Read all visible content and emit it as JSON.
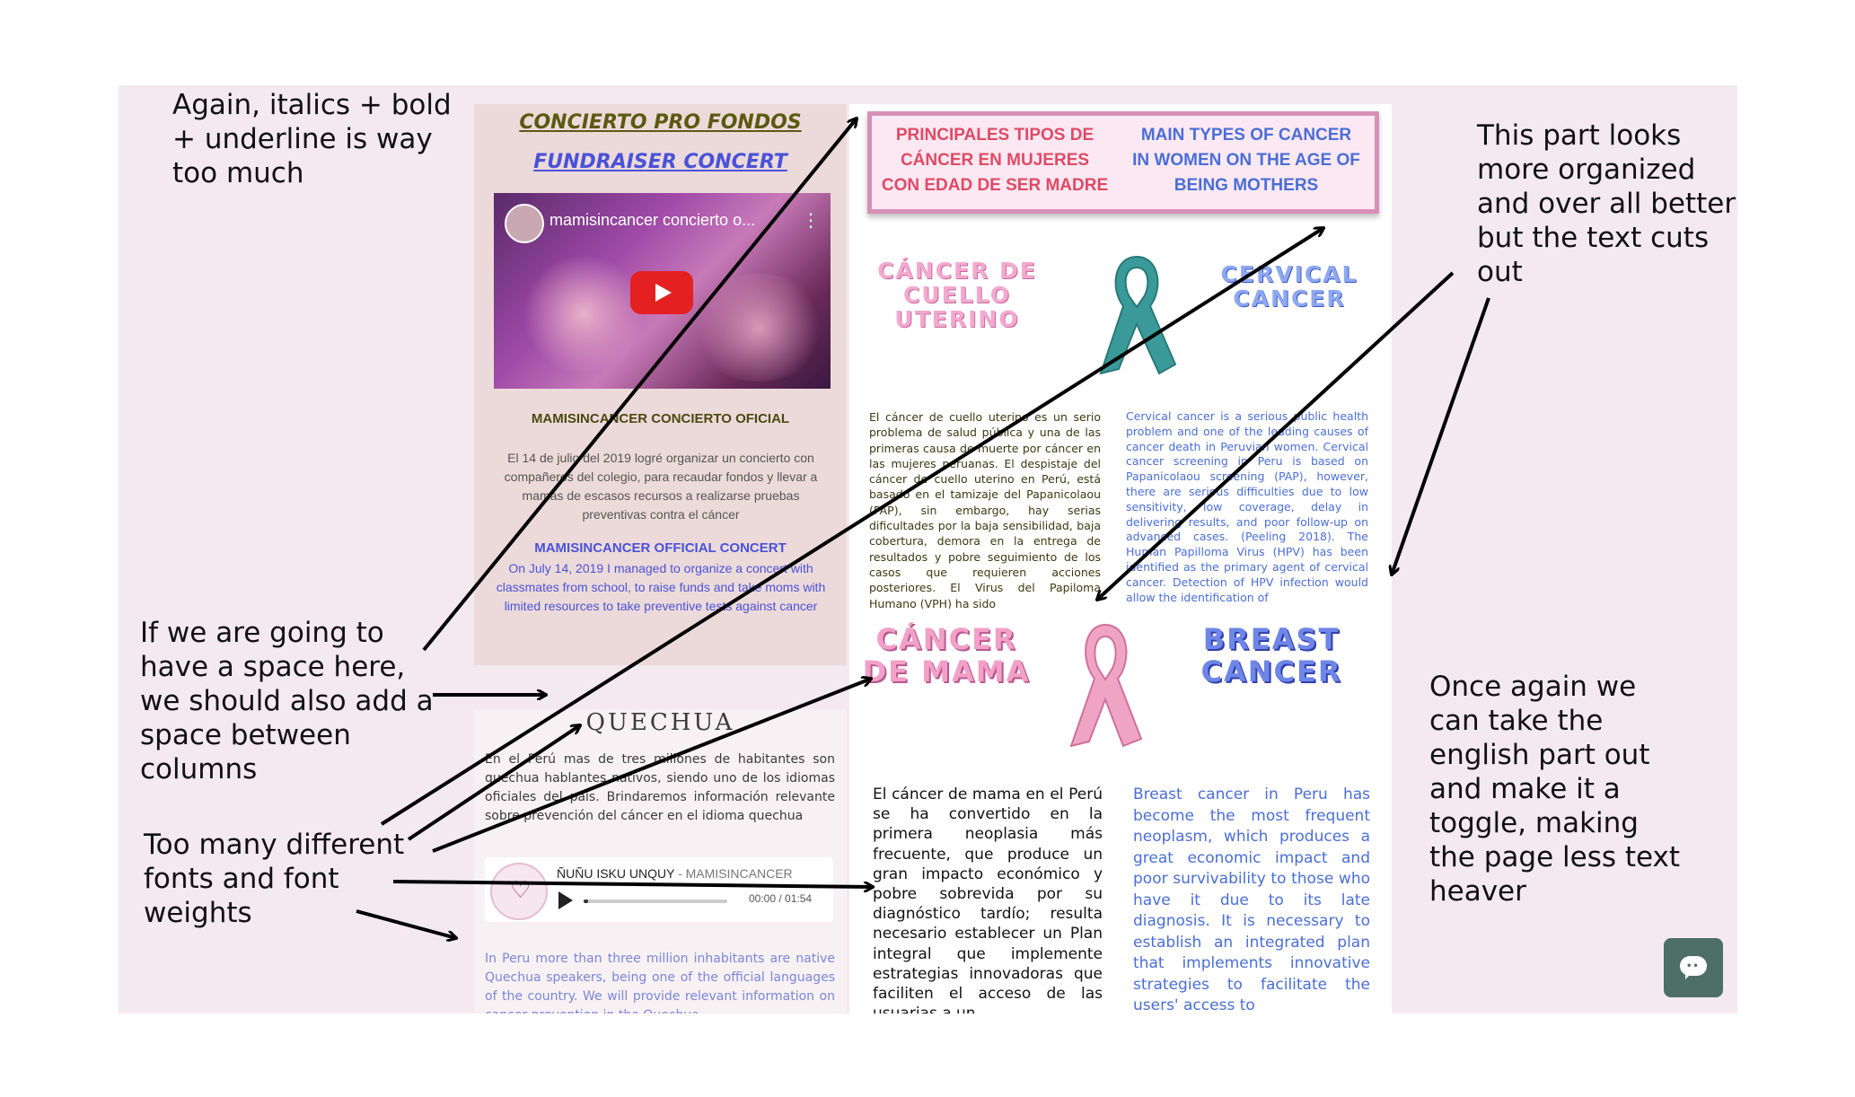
{
  "annotations": {
    "note_top_left": "Again, italics + bold\n+ underline is way\ntoo much",
    "note_top_right": "This part looks\nmore organized\nand over all better\nbut the text cuts\nout",
    "note_spacing": "If we are going to\nhave a space here,\nwe should also add a\nspace between\ncolumns",
    "note_fonts": "Too many different\nfonts and font\nweights",
    "note_toggle": "Once again we\ncan take the\nenglish part out\nand make it a\ntoggle, making\nthe page less text\nheaver"
  },
  "concert": {
    "title_es": "CONCIERTO PRO FONDOS",
    "title_en": "FUNDRAISER CONCERT",
    "video_title": "mamisincancer concierto o...",
    "heading_es": "MAMISINCANCER CONCIERTO OFICIAL",
    "body_es": "El 14 de julio del 2019 logré organizar un concierto con compañeros del colegio, para recaudar fondos y llevar a mamás de escasos recursos a realizarse pruebas preventivas contra el cáncer",
    "heading_en": "MAMISINCANCER OFFICIAL CONCERT",
    "body_en": "On July 14, 2019 I managed to organize a concert with classmates from school, to raise funds and take moms with limited resources to take preventive tests against cancer"
  },
  "types": {
    "header_es": "PRINCIPALES TIPOS DE CÁNCER EN MUJERES CON EDAD DE SER MADRE",
    "header_en": "MAIN TYPES OF CANCER IN WOMEN ON THE AGE OF BEING MOTHERS",
    "cervical_es": "CÁNCER DE CUELLO UTERINO",
    "cervical_en": "CERVICAL CANCER",
    "cervical_text_es": "El cáncer de cuello uterino es un serio problema de salud pública y una de las primeras causa de muerte por cáncer en las mujeres peruanas. El despistaje del cáncer de cuello uterino en Perú, está basado en el tamizaje del Papanicolaou (PAP), sin embargo, hay serias dificultades por la baja sensibilidad, baja cobertura, demora en la entrega de resultados y pobre seguimiento de los casos que requieren acciones posteriores. El Virus del Papiloma Humano (VPH) ha sido",
    "cervical_text_en": "Cervical cancer is a serious public health problem and one of the leading causes of cancer death in Peruvian women. Cervical cancer screening in Peru is based on Papanicolaou screening (PAP), however, there are serious difficulties due to low sensitivity, low coverage, delay in delivering results, and poor follow-up on advanced cases. (Peeling 2018). The Human Papilloma Virus (HPV) has been identified as the primary agent of cervical cancer. Detection of HPV infection would allow the identification of",
    "breast_es": "CÁNCER DE MAMA",
    "breast_en": "BREAST CANCER",
    "breast_text_es": "El cáncer de mama en el Perú se ha convertido en la primera neoplasia más frecuente, que produce un gran impacto económico y pobre sobrevida por su diagnóstico tardío; resulta necesario establecer un Plan integral que implemente estrategias innovadoras que faciliten el acceso de las usuarias a un",
    "breast_text_en": "Breast cancer in Peru has become the most frequent neoplasm, which produces a great economic impact and poor survivability to those who have it due to its late diagnosis. It is necessary to establish an integrated plan that implements innovative strategies to facilitate the users' access to"
  },
  "quechua": {
    "title": "QUECHUA",
    "body_es": "En el Perú mas de tres millones de habitantes son quechua hablantes nativos, siendo uno de los idiomas oficiales del país. Brindaremos información relevante sobre prevención del cáncer en el idioma quechua",
    "track_title": "ÑUÑU ISKU UNQUY",
    "track_artist": "- MAMISINCANCER",
    "time": "00:00 / 01:54",
    "progress": 0.03,
    "body_en": "In Peru more than three million inhabitants are native Quechua speakers, being one of the official languages of the country. We will provide relevant information on cancer prevention in the Quechua"
  },
  "colors": {
    "board": "#f3e9ef",
    "pink_accent": "#e04a66",
    "blue_accent": "#4a6ed8",
    "olive_title": "#5a5a12",
    "chat_button": "#4e6e68"
  },
  "icons": {
    "video_play": "youtube-play-icon",
    "audio_play": "play-icon",
    "chat": "chat-bubble-icon",
    "ribbon_teal": "teal-ribbon-icon",
    "ribbon_pink": "pink-ribbon-icon"
  }
}
